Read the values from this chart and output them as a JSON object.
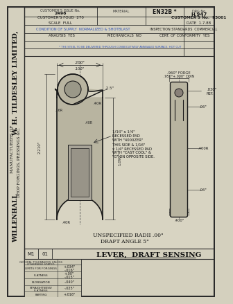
{
  "bg_color": "#ccc8b8",
  "paper_color": "#d4d0be",
  "line_color": "#2a2a2a",
  "blue_color": "#4466aa",
  "dark_color": "#1a1a1a",
  "title": "LEVER,  DRAFT SENSING",
  "company_lines": [
    "W. H. TILDESLEY LIMITED,",
    "MANUFACTURERS OF",
    "DROP FORGINGS, PRESSINGS &C.",
    "WILLENHALL"
  ],
  "company_fontsizes": [
    7.0,
    4.5,
    4.5,
    6.5
  ],
  "company_bold": [
    true,
    false,
    false,
    true
  ],
  "header_rows": [
    [
      "CUSTOMER'S ISSUE No.  2496",
      "MATERIAL  EN32B *",
      "DRG No.  H.947"
    ],
    [
      "CUSTOMER'S FOUD  270",
      "",
      "CUSTOMER'S No.  95001"
    ],
    [
      "SCALE  FULL",
      "",
      "DATE  1.7.88"
    ]
  ],
  "condition_line": "CONDITION OF SUPPLY  NORMALIZED & SHOTBLAST",
  "inspection_line": "INSPECTION STANDARDS  COMMERCIAL",
  "analysis_line": "ANALYSIS  YES",
  "mechanicals_line": "MECHANICALS  NO",
  "conformity_line": "CERT. OF CONFORMITY  YES",
  "steel_note": "* THE STEEL TO BE DELIVERED THROUGH CONSECUTIVELY ANNEALED SURFACE. HOT CUT",
  "note1": "UNSPECIFIED RADII .00\"",
  "note2": "DRAFT ANGLE 5\"",
  "sheet_m": "M1",
  "sheet_n": "01"
}
